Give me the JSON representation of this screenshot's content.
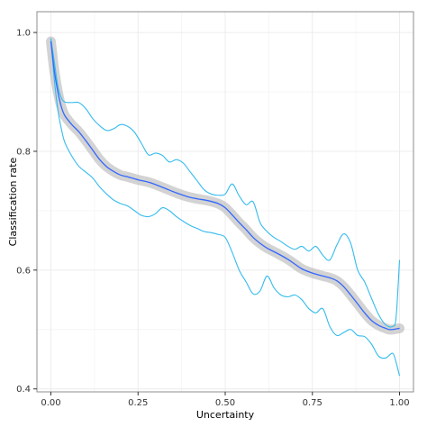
{
  "chart_data": {
    "type": "line",
    "xlabel": "Uncertainty",
    "ylabel": "Classification rate",
    "xlim": [
      -0.04,
      1.04
    ],
    "ylim": [
      0.395,
      1.035
    ],
    "x_ticks": [
      0.0,
      0.25,
      0.5,
      0.75,
      1.0
    ],
    "x_tick_labels": [
      "0.00",
      "0.25",
      "0.50",
      "0.75",
      "1.00"
    ],
    "y_ticks": [
      0.4,
      0.6,
      0.8,
      1.0
    ],
    "y_tick_labels": [
      "0.4",
      "0.6",
      "0.8",
      "1.0"
    ],
    "grid": true,
    "legend": "none",
    "colors": {
      "mean_line": "#3366ff",
      "bounds": "#33bbee",
      "ribbon": "#bbbbbb",
      "grid_major": "#ececec",
      "grid_minor": "#f6f6f6",
      "frame": "#8c8c8c"
    },
    "series": [
      {
        "role": "smoothed-mean",
        "x": [
          0.0,
          0.01,
          0.02,
          0.03,
          0.04,
          0.06,
          0.08,
          0.1,
          0.12,
          0.14,
          0.16,
          0.18,
          0.2,
          0.22,
          0.25,
          0.28,
          0.3,
          0.33,
          0.36,
          0.39,
          0.42,
          0.45,
          0.48,
          0.5,
          0.52,
          0.54,
          0.56,
          0.58,
          0.6,
          0.62,
          0.65,
          0.68,
          0.7,
          0.72,
          0.75,
          0.78,
          0.8,
          0.82,
          0.84,
          0.86,
          0.88,
          0.9,
          0.92,
          0.94,
          0.96,
          0.97,
          0.98,
          0.99,
          1.0
        ],
        "y": [
          0.985,
          0.935,
          0.9,
          0.875,
          0.86,
          0.845,
          0.833,
          0.818,
          0.802,
          0.786,
          0.774,
          0.766,
          0.76,
          0.757,
          0.752,
          0.748,
          0.744,
          0.737,
          0.73,
          0.724,
          0.72,
          0.717,
          0.712,
          0.705,
          0.693,
          0.68,
          0.668,
          0.655,
          0.645,
          0.637,
          0.628,
          0.618,
          0.61,
          0.602,
          0.595,
          0.59,
          0.587,
          0.582,
          0.572,
          0.558,
          0.543,
          0.528,
          0.515,
          0.507,
          0.502,
          0.5,
          0.5,
          0.501,
          0.502
        ]
      },
      {
        "role": "upper-bound",
        "x": [
          0.0,
          0.01,
          0.02,
          0.03,
          0.04,
          0.06,
          0.08,
          0.1,
          0.12,
          0.14,
          0.16,
          0.18,
          0.2,
          0.22,
          0.24,
          0.26,
          0.28,
          0.3,
          0.32,
          0.34,
          0.36,
          0.38,
          0.4,
          0.42,
          0.44,
          0.46,
          0.48,
          0.5,
          0.52,
          0.54,
          0.56,
          0.58,
          0.6,
          0.62,
          0.64,
          0.66,
          0.68,
          0.7,
          0.72,
          0.74,
          0.76,
          0.78,
          0.8,
          0.82,
          0.84,
          0.86,
          0.88,
          0.9,
          0.92,
          0.94,
          0.96,
          0.98,
          0.99,
          1.0
        ],
        "y": [
          0.99,
          0.95,
          0.91,
          0.89,
          0.883,
          0.882,
          0.882,
          0.872,
          0.855,
          0.843,
          0.835,
          0.838,
          0.845,
          0.842,
          0.832,
          0.813,
          0.794,
          0.797,
          0.793,
          0.782,
          0.786,
          0.78,
          0.765,
          0.75,
          0.735,
          0.728,
          0.726,
          0.728,
          0.745,
          0.725,
          0.71,
          0.715,
          0.68,
          0.665,
          0.655,
          0.648,
          0.64,
          0.635,
          0.64,
          0.632,
          0.64,
          0.625,
          0.617,
          0.642,
          0.661,
          0.645,
          0.6,
          0.58,
          0.552,
          0.525,
          0.508,
          0.505,
          0.52,
          0.617
        ]
      },
      {
        "role": "lower-bound",
        "x": [
          0.0,
          0.01,
          0.02,
          0.03,
          0.04,
          0.06,
          0.08,
          0.1,
          0.12,
          0.14,
          0.16,
          0.18,
          0.2,
          0.22,
          0.24,
          0.26,
          0.28,
          0.3,
          0.32,
          0.34,
          0.36,
          0.38,
          0.4,
          0.42,
          0.44,
          0.46,
          0.48,
          0.5,
          0.52,
          0.54,
          0.56,
          0.58,
          0.6,
          0.62,
          0.64,
          0.66,
          0.68,
          0.7,
          0.72,
          0.74,
          0.76,
          0.78,
          0.8,
          0.82,
          0.84,
          0.86,
          0.88,
          0.9,
          0.92,
          0.94,
          0.96,
          0.98,
          0.99,
          1.0
        ],
        "y": [
          0.99,
          0.92,
          0.87,
          0.838,
          0.815,
          0.792,
          0.775,
          0.765,
          0.755,
          0.74,
          0.728,
          0.718,
          0.712,
          0.708,
          0.7,
          0.692,
          0.69,
          0.695,
          0.705,
          0.7,
          0.69,
          0.682,
          0.675,
          0.67,
          0.665,
          0.663,
          0.66,
          0.655,
          0.63,
          0.6,
          0.58,
          0.56,
          0.565,
          0.59,
          0.57,
          0.558,
          0.555,
          0.558,
          0.55,
          0.535,
          0.528,
          0.535,
          0.505,
          0.49,
          0.495,
          0.5,
          0.49,
          0.488,
          0.475,
          0.455,
          0.452,
          0.46,
          0.445,
          0.422
        ]
      }
    ]
  }
}
